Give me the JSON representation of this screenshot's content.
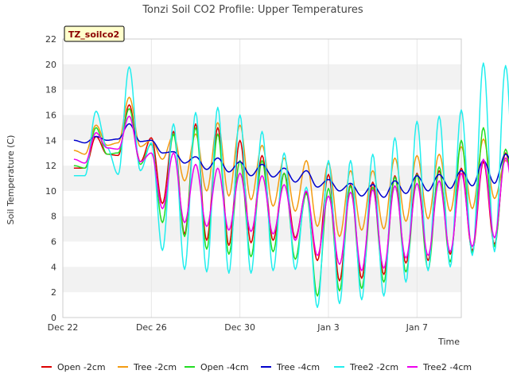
{
  "chart_data": {
    "type": "line",
    "title": "Tonzi Soil CO2 Profile: Upper Temperatures",
    "xlabel": "Time",
    "ylabel": "Soil Temperature (C)",
    "ylim": [
      0,
      22
    ],
    "yticks": [
      0,
      2,
      4,
      6,
      8,
      10,
      12,
      14,
      16,
      18,
      20,
      22
    ],
    "xlim": [
      "2021-12-22",
      "2022-01-09"
    ],
    "xticks": [
      {
        "date": "2021-12-22",
        "label": "Dec 22"
      },
      {
        "date": "2021-12-26",
        "label": "Dec 26"
      },
      {
        "date": "2021-12-30",
        "label": "Dec 30"
      },
      {
        "date": "2022-01-03",
        "label": "Jan 3"
      },
      {
        "date": "2022-01-07",
        "label": "Jan 7"
      }
    ],
    "grid": "horizontal bands",
    "legend_position": "bottom",
    "annotation": "TZ_soilco2",
    "series": [
      {
        "name": "Open -2cm",
        "color": "#dd0000",
        "start": "2021-12-22T12:00",
        "step_hours": 12,
        "values": [
          11.8,
          11.8,
          14.3,
          12.9,
          12.8,
          16.8,
          12.3,
          14.2,
          9.0,
          14.7,
          6.6,
          15.3,
          6.1,
          15.0,
          5.7,
          14.0,
          5.9,
          12.8,
          6.1,
          11.4,
          6.3,
          9.9,
          4.5,
          11.3,
          2.9,
          10.5,
          3.1,
          10.7,
          3.4,
          11.2,
          4.3,
          11.4,
          4.5,
          11.6,
          5.0,
          11.8,
          5.3,
          12.3,
          5.8,
          13.0,
          8.0
        ]
      },
      {
        "name": "Tree -2cm",
        "color": "#f39c12",
        "start": "2021-12-22T12:00",
        "step_hours": 12,
        "values": [
          13.2,
          12.9,
          15.2,
          13.6,
          13.8,
          17.4,
          13.5,
          14.0,
          12.5,
          14.4,
          10.8,
          14.5,
          10.0,
          15.4,
          9.6,
          15.2,
          9.3,
          13.6,
          8.8,
          12.6,
          8.4,
          12.4,
          7.2,
          12.2,
          6.4,
          11.6,
          6.9,
          11.6,
          7.0,
          12.6,
          7.6,
          12.8,
          7.8,
          12.9,
          8.4,
          13.5,
          8.6,
          14.1,
          9.4,
          12.4,
          10.5
        ]
      },
      {
        "name": "Open -4cm",
        "color": "#22dd22",
        "start": "2021-12-22T12:00",
        "step_hours": 12,
        "values": [
          12.0,
          11.8,
          15.0,
          12.9,
          13.0,
          16.5,
          12.1,
          13.7,
          7.5,
          14.5,
          6.4,
          15.0,
          5.4,
          14.5,
          5.0,
          12.4,
          4.8,
          12.4,
          5.2,
          11.4,
          4.6,
          9.8,
          1.7,
          10.2,
          2.1,
          10.4,
          2.3,
          10.3,
          2.8,
          11.1,
          3.6,
          11.3,
          3.8,
          11.9,
          4.4,
          14.0,
          5.1,
          15.0,
          5.6,
          13.3,
          7.8
        ]
      },
      {
        "name": "Tree -4cm",
        "color": "#0000cc",
        "start": "2021-12-22T12:00",
        "step_hours": 12,
        "values": [
          14.0,
          13.8,
          14.3,
          14.0,
          14.1,
          15.3,
          13.9,
          14.0,
          13.0,
          13.1,
          12.2,
          12.7,
          11.7,
          12.6,
          11.5,
          12.3,
          11.2,
          12.1,
          11.1,
          11.8,
          10.7,
          11.6,
          10.3,
          10.9,
          10.0,
          10.6,
          9.6,
          10.5,
          9.5,
          10.8,
          9.8,
          11.2,
          10.0,
          11.3,
          10.2,
          11.6,
          10.4,
          12.4,
          10.6,
          12.9,
          11.6
        ]
      },
      {
        "name": "Tree2 -2cm",
        "color": "#22eeee",
        "start": "2021-12-22T12:00",
        "step_hours": 12,
        "values": [
          11.2,
          11.2,
          16.3,
          13.4,
          11.3,
          19.8,
          11.6,
          13.8,
          5.3,
          15.3,
          3.8,
          16.2,
          3.6,
          16.6,
          3.5,
          16.0,
          3.5,
          14.7,
          3.7,
          13.0,
          3.8,
          10.3,
          0.8,
          12.4,
          1.1,
          12.4,
          1.4,
          12.9,
          1.7,
          14.2,
          2.8,
          15.5,
          3.7,
          15.9,
          4.0,
          16.4,
          4.9,
          20.1,
          5.2,
          19.9,
          6.9
        ]
      },
      {
        "name": "Tree2 -4cm",
        "color": "#ee00ee",
        "start": "2021-12-22T12:00",
        "step_hours": 12,
        "values": [
          12.5,
          12.2,
          14.6,
          13.4,
          13.3,
          15.9,
          12.3,
          13.0,
          8.6,
          13.0,
          7.5,
          12.1,
          7.2,
          11.8,
          6.9,
          11.4,
          6.8,
          11.2,
          6.6,
          10.5,
          6.1,
          10.0,
          4.9,
          9.6,
          4.2,
          9.9,
          3.7,
          10.1,
          3.9,
          10.4,
          4.7,
          10.6,
          4.9,
          10.8,
          5.2,
          11.4,
          5.6,
          12.5,
          6.3,
          12.6,
          8.5
        ]
      }
    ]
  }
}
